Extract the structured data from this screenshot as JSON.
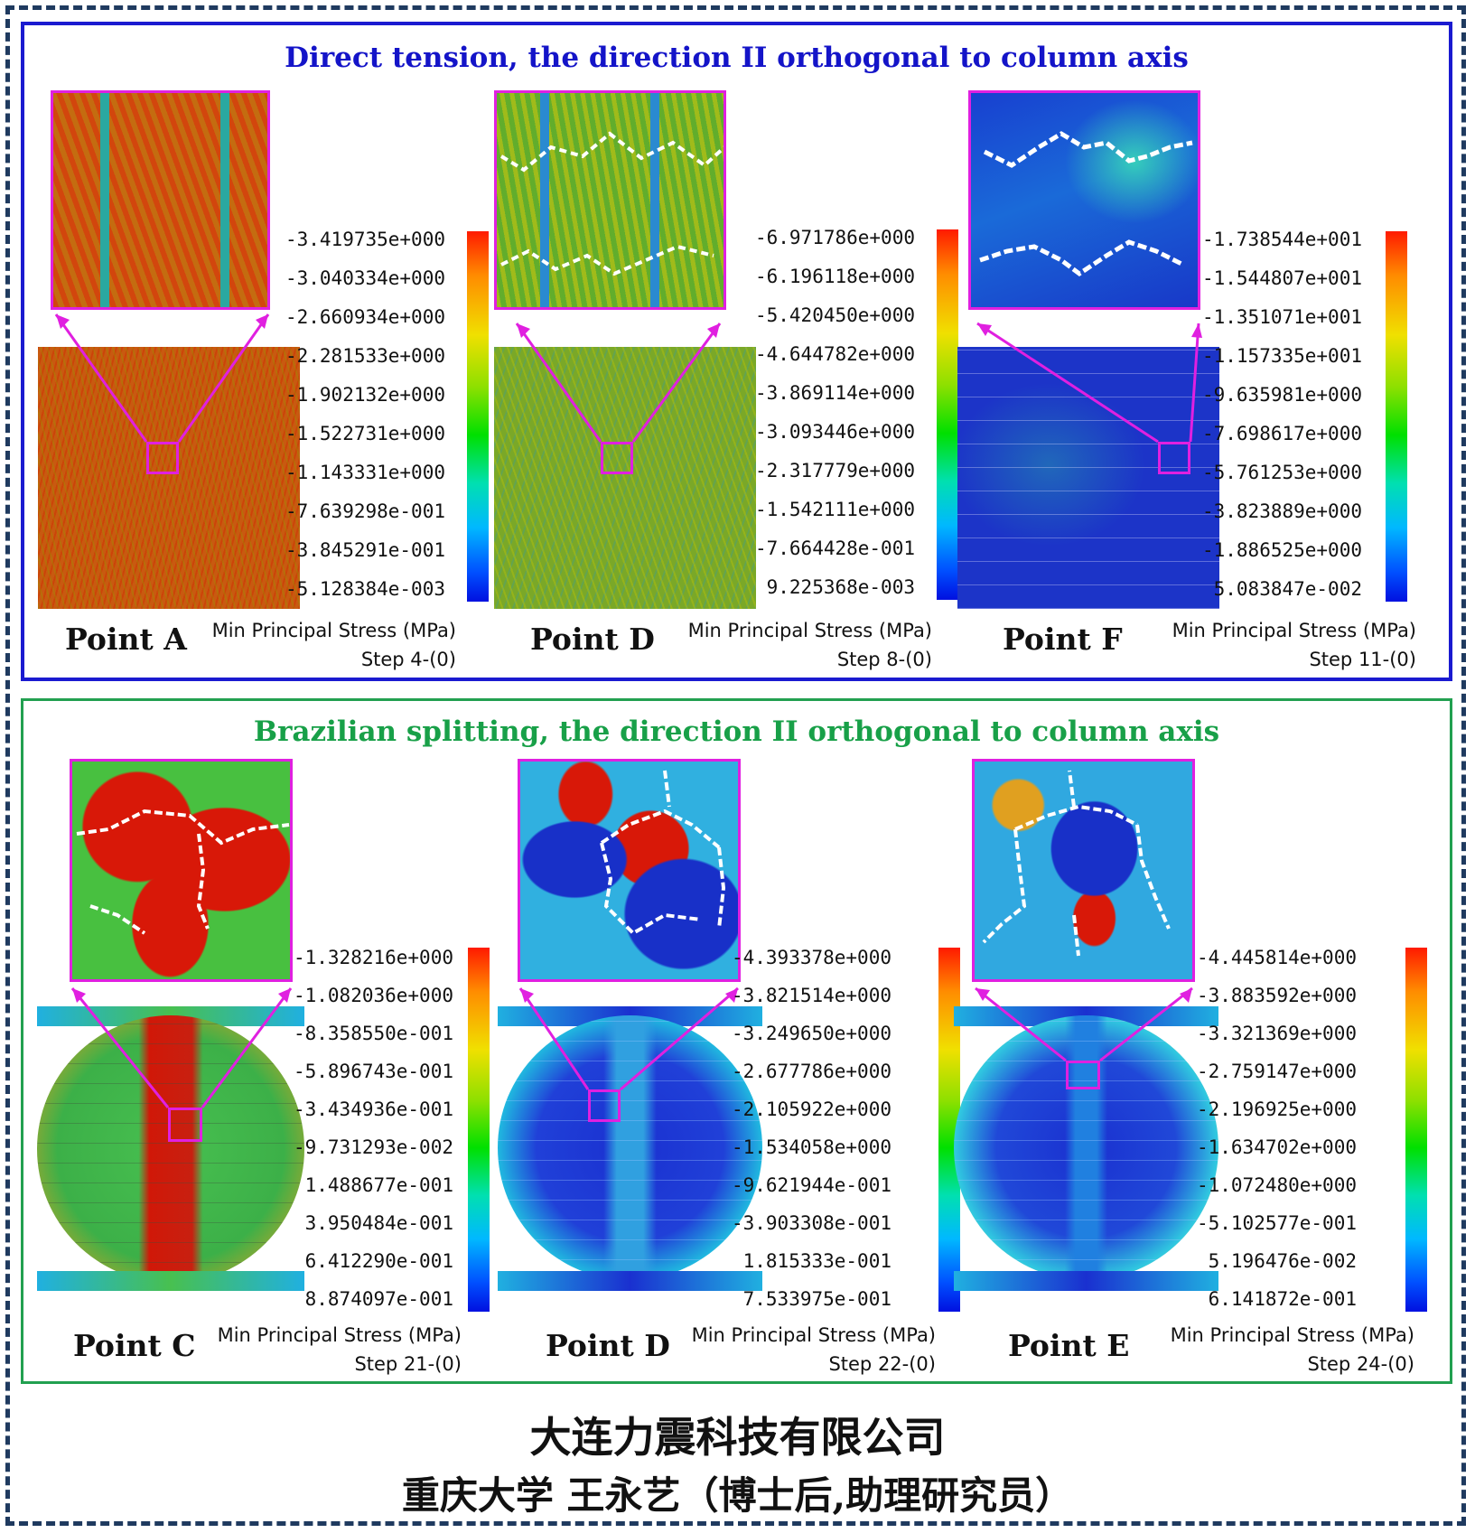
{
  "top_panel": {
    "title": "Direct tension,  the direction II orthogonal to column axis",
    "color": "#1414c8",
    "sims": [
      {
        "point_label": "Point A",
        "legend_title": "Min Principal Stress (MPa)",
        "step": "Step 4-(0)",
        "scale": [
          "-3.419735e+000",
          "-3.040334e+000",
          "-2.660934e+000",
          "-2.281533e+000",
          "-1.902132e+000",
          "-1.522731e+000",
          "-1.143331e+000",
          "-7.639298e-001",
          "-3.845291e-001",
          "-5.128384e-003"
        ]
      },
      {
        "point_label": "Point D",
        "legend_title": "Min Principal Stress (MPa)",
        "step": "Step 8-(0)",
        "scale": [
          "-6.971786e+000",
          "-6.196118e+000",
          "-5.420450e+000",
          "-4.644782e+000",
          "-3.869114e+000",
          "-3.093446e+000",
          "-2.317779e+000",
          "-1.542111e+000",
          "-7.664428e-001",
          "9.225368e-003"
        ]
      },
      {
        "point_label": "Point F",
        "legend_title": "Min Principal Stress (MPa)",
        "step": "Step 11-(0)",
        "scale": [
          "-1.738544e+001",
          "-1.544807e+001",
          "-1.351071e+001",
          "-1.157335e+001",
          "-9.635981e+000",
          "-7.698617e+000",
          "-5.761253e+000",
          "-3.823889e+000",
          "-1.886525e+000",
          "5.083847e-002"
        ]
      }
    ]
  },
  "bottom_panel": {
    "title": "Brazilian splitting,  the direction II orthogonal to column axis",
    "color": "#18a048",
    "sims": [
      {
        "point_label": "Point C",
        "legend_title": "Min Principal Stress (MPa)",
        "step": "Step 21-(0)",
        "scale": [
          "-1.328216e+000",
          "-1.082036e+000",
          "-8.358550e-001",
          "-5.896743e-001",
          "-3.434936e-001",
          "-9.731293e-002",
          "1.488677e-001",
          "3.950484e-001",
          "6.412290e-001",
          "8.874097e-001"
        ]
      },
      {
        "point_label": "Point D",
        "legend_title": "Min Principal Stress (MPa)",
        "step": "Step 22-(0)",
        "scale": [
          "-4.393378e+000",
          "-3.821514e+000",
          "-3.249650e+000",
          "-2.677786e+000",
          "-2.105922e+000",
          "-1.534058e+000",
          "-9.621944e-001",
          "-3.903308e-001",
          "1.815333e-001",
          "7.533975e-001"
        ]
      },
      {
        "point_label": "Point E",
        "legend_title": "Min Principal Stress (MPa)",
        "step": "Step 24-(0)",
        "scale": [
          "-4.445814e+000",
          "-3.883592e+000",
          "-3.321369e+000",
          "-2.759147e+000",
          "-2.196925e+000",
          "-1.634702e+000",
          "-1.072480e+000",
          "-5.102577e-001",
          "5.196476e-002",
          "6.141872e-001"
        ]
      }
    ]
  },
  "footer": {
    "company": "大连力震科技有限公司",
    "author": "重庆大学  王永艺（博士后,助理研究员）"
  },
  "colors": {
    "outer_border": "#1f3a5f",
    "top_border": "#1a1ad0",
    "bottom_border": "#22a050",
    "zoom_frame": "#e020e0"
  }
}
